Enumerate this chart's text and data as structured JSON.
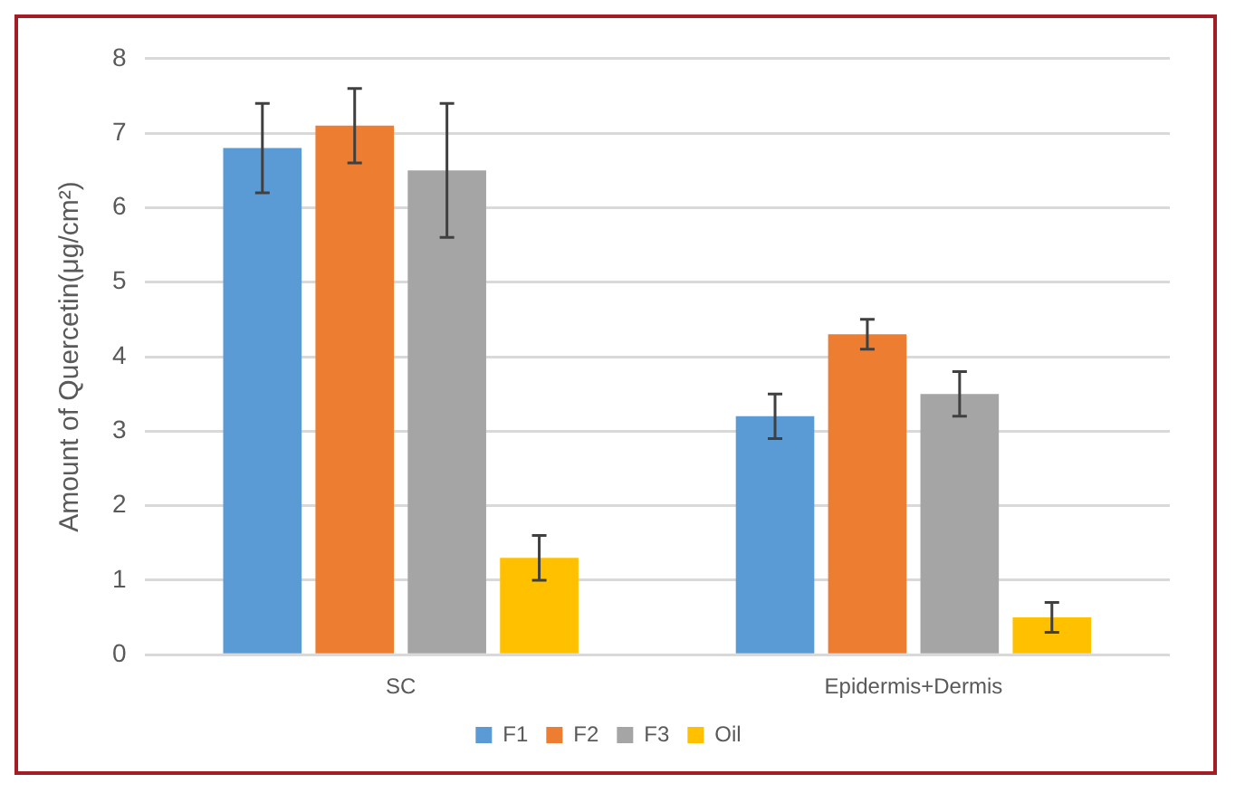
{
  "chart_data": {
    "type": "bar",
    "ylabel": "Amount of Quercetin(μg/cm²)",
    "categories": [
      "SC",
      "Epidermis+Dermis"
    ],
    "series": [
      {
        "name": "F1",
        "color": "#5b9bd5",
        "values": [
          6.8,
          3.2
        ],
        "errors": [
          0.6,
          0.3
        ]
      },
      {
        "name": "F2",
        "color": "#ed7d31",
        "values": [
          7.1,
          4.3
        ],
        "errors": [
          0.5,
          0.2
        ]
      },
      {
        "name": "F3",
        "color": "#a5a5a5",
        "values": [
          6.5,
          3.5
        ],
        "errors": [
          0.9,
          0.3
        ]
      },
      {
        "name": "Oil",
        "color": "#ffc000",
        "values": [
          1.3,
          0.5
        ],
        "errors": [
          0.3,
          0.2
        ]
      }
    ],
    "ylim": [
      0,
      8
    ],
    "yticks": [
      0,
      1,
      2,
      3,
      4,
      5,
      6,
      7,
      8
    ],
    "grid": "y",
    "legend": "bottom"
  }
}
